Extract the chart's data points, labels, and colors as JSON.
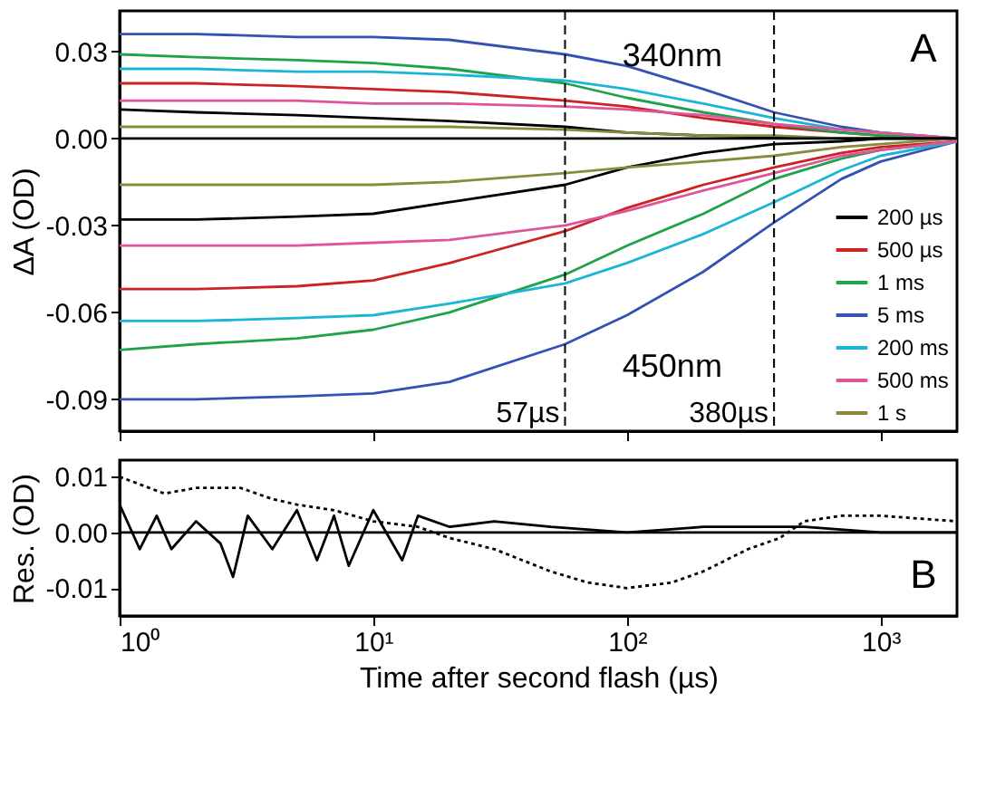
{
  "chart_data": [
    {
      "type": "line",
      "ylabel": "ΔA (OD)",
      "tick_labels": "y",
      "grid": false,
      "legend": "bottom right",
      "log": "x",
      "x": [
        1,
        2,
        5,
        10,
        20,
        57,
        100,
        200,
        380,
        700,
        1000,
        2000
      ],
      "xlim": [
        1,
        2000
      ],
      "xticks": [
        {
          "value": 1,
          "label": null
        },
        {
          "value": 10,
          "label": null
        },
        {
          "value": 100,
          "label": null
        },
        {
          "value": 1000,
          "label": null
        }
      ],
      "ylim": [
        -0.101,
        0.044
      ],
      "yticks": [
        {
          "value": 0.03,
          "label": "0.03"
        },
        {
          "value": 0,
          "label": "0.00"
        },
        {
          "value": -0.03,
          "label": "-0.03"
        },
        {
          "value": -0.06,
          "label": "-0.06"
        },
        {
          "value": -0.09,
          "label": "-0.09"
        }
      ],
      "series": [
        {
          "name": "200 µs",
          "color": "#000000",
          "values": [
            0.01,
            0.009,
            0.008,
            0.007,
            0.006,
            0.004,
            0.002,
            0.001,
            0.0005,
            0.0,
            0.0,
            0.0
          ]
        },
        {
          "name": "500 µs",
          "color": "#cc2222",
          "values": [
            0.019,
            0.019,
            0.018,
            0.017,
            0.016,
            0.013,
            0.011,
            0.007,
            0.004,
            0.002,
            0.001,
            0.0
          ]
        },
        {
          "name": "1 ms",
          "color": "#1ea34a",
          "values": [
            0.029,
            0.028,
            0.027,
            0.026,
            0.024,
            0.019,
            0.014,
            0.009,
            0.005,
            0.002,
            0.001,
            0.0
          ]
        },
        {
          "name": "5 ms",
          "color": "#3452b4",
          "values": [
            0.036,
            0.036,
            0.035,
            0.035,
            0.034,
            0.029,
            0.025,
            0.017,
            0.009,
            0.004,
            0.002,
            0.0
          ]
        },
        {
          "name": "200 ms",
          "color": "#1bb6d6",
          "values": [
            0.024,
            0.024,
            0.023,
            0.023,
            0.022,
            0.02,
            0.017,
            0.012,
            0.007,
            0.003,
            0.002,
            0.0
          ]
        },
        {
          "name": "500 ms",
          "color": "#e0559a",
          "values": [
            0.013,
            0.013,
            0.013,
            0.012,
            0.012,
            0.011,
            0.01,
            0.008,
            0.005,
            0.003,
            0.002,
            0.0
          ]
        },
        {
          "name": "1 s",
          "color": "#8a8a3c",
          "values": [
            0.004,
            0.004,
            0.004,
            0.004,
            0.004,
            0.003,
            0.002,
            0.001,
            0.001,
            0.0,
            0.0,
            0.0
          ]
        },
        {
          "color": "#000000",
          "values": [
            -0.028,
            -0.028,
            -0.027,
            -0.026,
            -0.022,
            -0.016,
            -0.01,
            -0.005,
            -0.002,
            -0.001,
            0.0,
            0.0
          ]
        },
        {
          "color": "#cc2222",
          "values": [
            -0.052,
            -0.052,
            -0.051,
            -0.049,
            -0.043,
            -0.032,
            -0.024,
            -0.016,
            -0.01,
            -0.005,
            -0.003,
            -0.001
          ]
        },
        {
          "color": "#1ea34a",
          "values": [
            -0.073,
            -0.071,
            -0.069,
            -0.066,
            -0.06,
            -0.047,
            -0.037,
            -0.026,
            -0.014,
            -0.007,
            -0.004,
            -0.001
          ]
        },
        {
          "color": "#3452b4",
          "values": [
            -0.09,
            -0.09,
            -0.089,
            -0.088,
            -0.084,
            -0.071,
            -0.061,
            -0.046,
            -0.029,
            -0.014,
            -0.008,
            -0.001
          ]
        },
        {
          "color": "#1bb6d6",
          "values": [
            -0.063,
            -0.063,
            -0.062,
            -0.061,
            -0.057,
            -0.05,
            -0.043,
            -0.033,
            -0.022,
            -0.011,
            -0.006,
            -0.001
          ]
        },
        {
          "color": "#e0559a",
          "values": [
            -0.037,
            -0.037,
            -0.037,
            -0.036,
            -0.035,
            -0.03,
            -0.025,
            -0.018,
            -0.012,
            -0.006,
            -0.004,
            -0.001
          ]
        },
        {
          "color": "#8a8a3c",
          "values": [
            -0.016,
            -0.016,
            -0.016,
            -0.016,
            -0.015,
            -0.012,
            -0.01,
            -0.008,
            -0.006,
            -0.003,
            -0.002,
            0.0
          ]
        }
      ],
      "ref_lines": [
        {
          "axis": "y",
          "value": 0,
          "label": null,
          "color": "#000000",
          "line_style": "solid"
        },
        {
          "axis": "x",
          "value": 57,
          "label": "57µs",
          "color": "#000000",
          "line_style": "dashed"
        },
        {
          "axis": "x",
          "value": 380,
          "label": "380µs",
          "color": "#000000",
          "line_style": "dashed"
        }
      ],
      "annotations": [
        "340nm",
        "450nm",
        "A"
      ]
    },
    {
      "type": "line",
      "xlabel": "Time after second flash (µs)",
      "ylabel": "Res. (OD)",
      "grid": false,
      "legend": false,
      "log": "x",
      "xlim": [
        1,
        2000
      ],
      "xticks": [
        {
          "value": 1,
          "label": "10⁰"
        },
        {
          "value": 10,
          "label": "10¹"
        },
        {
          "value": 100,
          "label": "10²"
        },
        {
          "value": 1000,
          "label": "10³"
        }
      ],
      "ylim": [
        -0.015,
        0.013
      ],
      "yticks": [
        {
          "value": 0.01,
          "label": "0.01"
        },
        {
          "value": 0,
          "label": "0.00"
        },
        {
          "value": -0.01,
          "label": "-0.01"
        }
      ],
      "series": [
        {
          "color": "#000000",
          "line_style": "solid",
          "x": [
            1,
            1.2,
            1.4,
            1.6,
            2,
            2.5,
            2.8,
            3.2,
            4,
            5,
            6,
            7,
            8,
            10,
            13,
            15,
            20,
            30,
            50,
            100,
            200,
            500,
            1000,
            2000
          ],
          "values": [
            0.005,
            -0.003,
            0.003,
            -0.003,
            0.002,
            -0.002,
            -0.008,
            0.003,
            -0.003,
            0.004,
            -0.005,
            0.003,
            -0.006,
            0.004,
            -0.005,
            0.003,
            0.001,
            0.002,
            0.001,
            0.0,
            0.001,
            0.001,
            0.0,
            0.0
          ]
        },
        {
          "color": "#000000",
          "line_style": "dotted",
          "x": [
            1,
            1.5,
            2,
            3,
            4,
            5,
            7,
            10,
            15,
            20,
            30,
            50,
            70,
            100,
            150,
            200,
            300,
            400,
            500,
            700,
            1000,
            2000
          ],
          "values": [
            0.01,
            0.007,
            0.008,
            0.008,
            0.006,
            0.005,
            0.004,
            0.002,
            0.001,
            -0.001,
            -0.003,
            -0.007,
            -0.009,
            -0.01,
            -0.009,
            -0.007,
            -0.003,
            -0.001,
            0.002,
            0.003,
            0.003,
            0.002
          ]
        }
      ],
      "ref_lines": [
        {
          "axis": "y",
          "value": 0,
          "label": null,
          "color": "#000000",
          "line_style": "solid"
        }
      ],
      "annotations": [
        "B"
      ]
    }
  ]
}
